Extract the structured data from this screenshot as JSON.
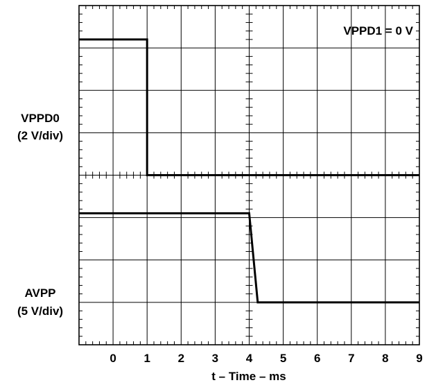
{
  "chart_data": {
    "type": "line",
    "annotation": "VPPD1 = 0 V",
    "xlabel": "t – Time – ms",
    "x_ticks": [
      0,
      1,
      2,
      3,
      4,
      5,
      6,
      7,
      8,
      9
    ],
    "xlim": [
      -1,
      9
    ],
    "grid": true,
    "channels": [
      {
        "name": "VPPD0",
        "scale": "(2 V/div)",
        "divisions": 4,
        "x": [
          -1,
          1,
          1,
          9
        ],
        "y_div": [
          3.2,
          3.2,
          0,
          0
        ]
      },
      {
        "name": "AVPP",
        "scale": "(5 V/div)",
        "divisions": 4,
        "x": [
          -1,
          4,
          4.25,
          9
        ],
        "y_div": [
          3.1,
          3.1,
          1,
          1
        ]
      }
    ]
  }
}
